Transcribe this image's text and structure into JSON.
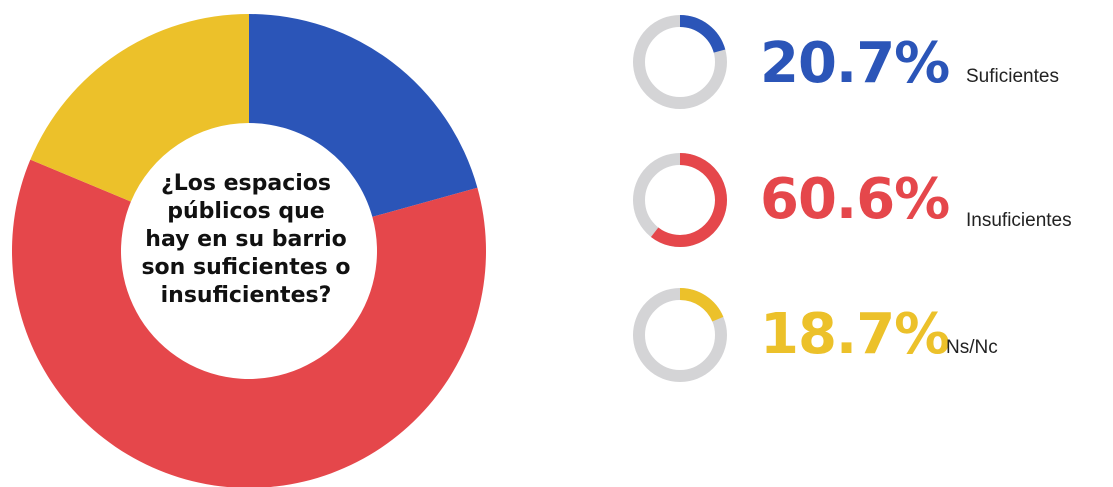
{
  "chart_data": {
    "type": "pie",
    "title": "¿Los espacios públicos que hay en su barrio son suficientes o insuficientes?",
    "slices": [
      {
        "label": "Suficientes",
        "value": 20.7,
        "display": "20.7%",
        "color": "#2b55b8"
      },
      {
        "label": "Insuficientes",
        "value": 60.6,
        "display": "60.6%",
        "color": "#e5474b"
      },
      {
        "label": "Ns/Nc",
        "value": 18.7,
        "display": "18.7%",
        "color": "#ecc12a"
      }
    ],
    "track_color": "#d4d4d6",
    "legend": "right"
  },
  "center_text": "¿Los espacios\npúblicos que\nhay en su barrio\nson suficientes o\ninsuficientes?"
}
